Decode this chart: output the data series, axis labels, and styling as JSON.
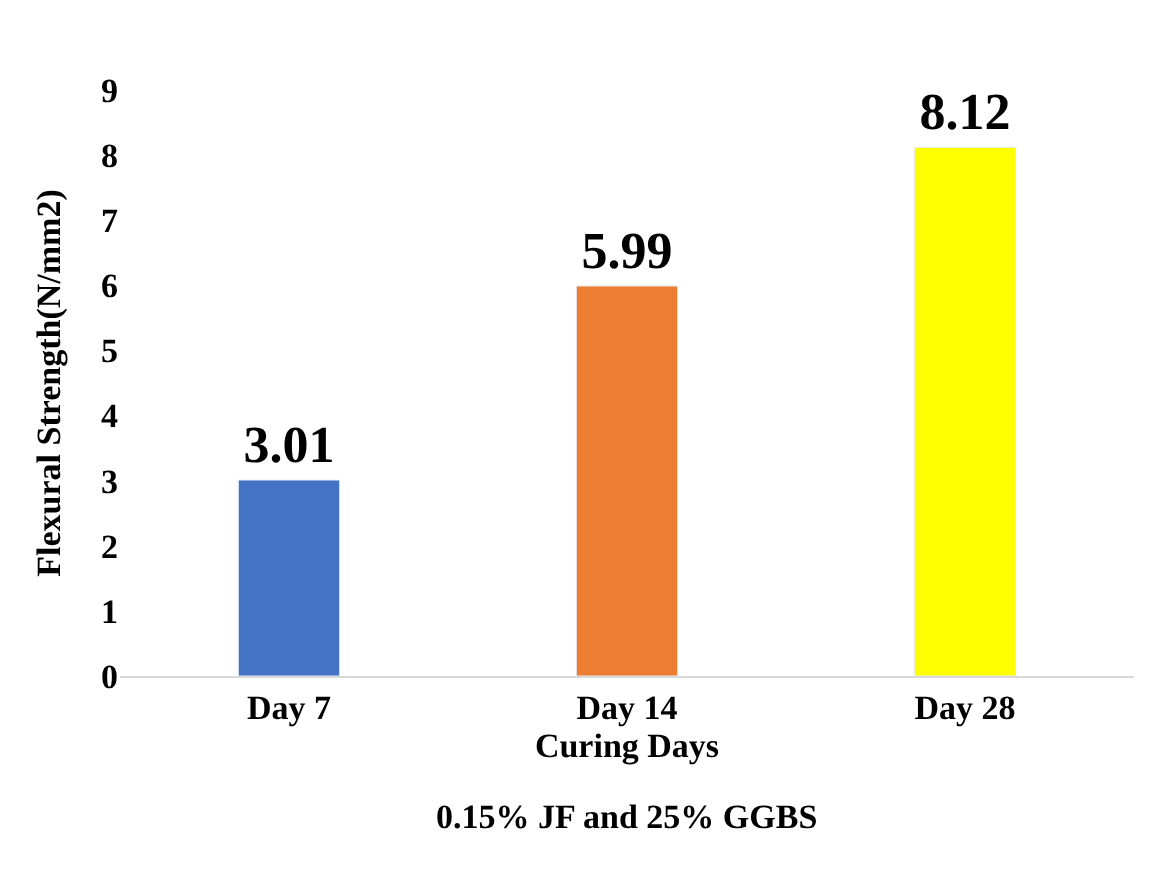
{
  "chart_data": {
    "type": "bar",
    "categories": [
      "Day 7",
      "Day 14",
      "Day 28"
    ],
    "values": [
      3.01,
      5.99,
      8.12
    ],
    "colors": [
      "#4472c4",
      "#ed7d31",
      "#ffff00"
    ],
    "ylim": [
      0,
      9
    ],
    "yticks": [
      0,
      1,
      2,
      3,
      4,
      5,
      6,
      7,
      8,
      9
    ],
    "ylabel": "Flexural Strength(N/mm2)",
    "xlabel": "Curing Days",
    "annotations": [
      "0.15% JF and 25% GGBS"
    ],
    "data_labels": true
  }
}
